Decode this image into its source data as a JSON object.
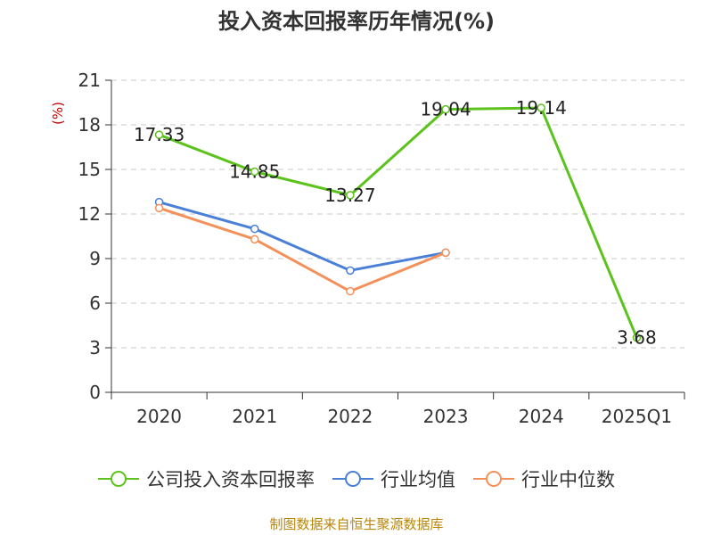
{
  "chart_data": {
    "type": "line",
    "title": "投入资本回报率历年情况(%)",
    "ylabel": "(%)",
    "xlabel": "",
    "categories": [
      "2020",
      "2021",
      "2022",
      "2023",
      "2024",
      "2025Q1"
    ],
    "ylim": [
      0,
      21
    ],
    "yticks": [
      0,
      3,
      6,
      9,
      12,
      15,
      18,
      21
    ],
    "grid": true,
    "legend_position": "bottom",
    "series": [
      {
        "name": "公司投入资本回报率",
        "color": "#5cc21c",
        "values": [
          17.33,
          14.85,
          13.27,
          19.04,
          19.14,
          3.68
        ],
        "labels": [
          "17.33",
          "14.85",
          "13.27",
          "19.04",
          "19.14",
          "3.68"
        ]
      },
      {
        "name": "行业均值",
        "color": "#4a7fd8",
        "values": [
          12.8,
          11.0,
          8.2,
          9.4,
          null,
          null
        ],
        "labels": null
      },
      {
        "name": "行业中位数",
        "color": "#f4915a",
        "values": [
          12.4,
          10.3,
          6.8,
          9.4,
          null,
          null
        ],
        "labels": null
      }
    ]
  },
  "source": "制图数据来自恒生聚源数据库"
}
